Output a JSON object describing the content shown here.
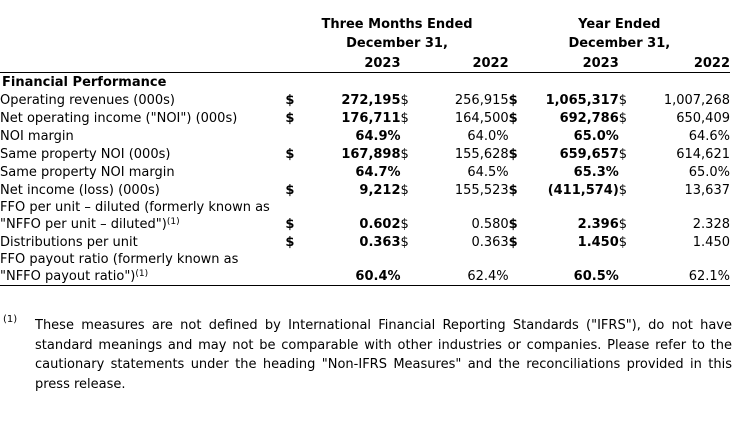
{
  "table": {
    "group1": {
      "line1": "Three Months Ended",
      "line2": "December 31,"
    },
    "group2": {
      "line1": "Year Ended",
      "line2": "December 31,"
    },
    "years": [
      "2023",
      "2022",
      "2023",
      "2022"
    ],
    "section_title": "Financial Performance",
    "rows": [
      {
        "label_lines": [
          "Operating revenues (000s)"
        ],
        "sup": "",
        "cells": [
          {
            "cur": "$",
            "value": "272,195",
            "align": "num"
          },
          {
            "cur": "$",
            "value": "256,915",
            "align": "num"
          },
          {
            "cur": "$",
            "value": "1,065,317",
            "align": "num"
          },
          {
            "cur": "$",
            "value": "1,007,268",
            "align": "num"
          }
        ]
      },
      {
        "label_lines": [
          "Net operating income (\"NOI\") (000s)"
        ],
        "sup": "",
        "cells": [
          {
            "cur": "$",
            "value": "176,711",
            "align": "num"
          },
          {
            "cur": "$",
            "value": "164,500",
            "align": "num"
          },
          {
            "cur": "$",
            "value": "692,786",
            "align": "num"
          },
          {
            "cur": "$",
            "value": "650,409",
            "align": "num"
          }
        ]
      },
      {
        "label_lines": [
          "NOI margin"
        ],
        "sup": "",
        "cells": [
          {
            "cur": "",
            "value": "64.9%",
            "align": "pct"
          },
          {
            "cur": "",
            "value": "64.0%",
            "align": "pct"
          },
          {
            "cur": "",
            "value": "65.0%",
            "align": "pct"
          },
          {
            "cur": "",
            "value": "64.6%",
            "align": "pct"
          }
        ]
      },
      {
        "label_lines": [
          "Same property NOI (000s)"
        ],
        "sup": "",
        "cells": [
          {
            "cur": "$",
            "value": "167,898",
            "align": "num"
          },
          {
            "cur": "$",
            "value": "155,628",
            "align": "num"
          },
          {
            "cur": "$",
            "value": "659,657",
            "align": "num"
          },
          {
            "cur": "$",
            "value": "614,621",
            "align": "num"
          }
        ]
      },
      {
        "label_lines": [
          "Same property NOI margin"
        ],
        "sup": "",
        "cells": [
          {
            "cur": "",
            "value": "64.7%",
            "align": "pct"
          },
          {
            "cur": "",
            "value": "64.5%",
            "align": "pct"
          },
          {
            "cur": "",
            "value": "65.3%",
            "align": "pct"
          },
          {
            "cur": "",
            "value": "65.0%",
            "align": "pct"
          }
        ]
      },
      {
        "label_lines": [
          "Net income (loss) (000s)"
        ],
        "sup": "",
        "cells": [
          {
            "cur": "$",
            "value": "9,212",
            "align": "num"
          },
          {
            "cur": "$",
            "value": "155,523",
            "align": "num"
          },
          {
            "cur": "$",
            "value": "(411,574)",
            "align": "paren"
          },
          {
            "cur": "$",
            "value": "13,637",
            "align": "num"
          }
        ]
      },
      {
        "label_lines": [
          "FFO per unit – diluted (formerly known as",
          "\"NFFO per unit – diluted\")"
        ],
        "sup": "(1)",
        "cells": [
          {
            "cur": "$",
            "value": "0.602",
            "align": "num"
          },
          {
            "cur": "$",
            "value": "0.580",
            "align": "num"
          },
          {
            "cur": "$",
            "value": "2.396",
            "align": "num"
          },
          {
            "cur": "$",
            "value": "2.328",
            "align": "num"
          }
        ]
      },
      {
        "label_lines": [
          "Distributions per unit"
        ],
        "sup": "",
        "cells": [
          {
            "cur": "$",
            "value": "0.363",
            "align": "num"
          },
          {
            "cur": "$",
            "value": "0.363",
            "align": "num"
          },
          {
            "cur": "$",
            "value": "1.450",
            "align": "num"
          },
          {
            "cur": "$",
            "value": "1.450",
            "align": "num"
          }
        ]
      },
      {
        "label_lines": [
          "FFO payout ratio (formerly known as",
          "\"NFFO payout ratio\")"
        ],
        "sup": "(1)",
        "cells": [
          {
            "cur": "",
            "value": "60.4%",
            "align": "pct"
          },
          {
            "cur": "",
            "value": "62.4%",
            "align": "pct"
          },
          {
            "cur": "",
            "value": "60.5%",
            "align": "pct"
          },
          {
            "cur": "",
            "value": "62.1%",
            "align": "pct"
          }
        ]
      }
    ]
  },
  "footnote": {
    "marker": "(1)",
    "text": "These measures are not defined by International Financial Reporting Standards (\"IFRS\"), do not have standard meanings and may not be comparable with other industries or companies. Please refer to the cautionary statements under the heading \"Non-IFRS Measures\" and the reconciliations provided in this press release."
  },
  "colors": {
    "text": "#000000",
    "background": "#ffffff",
    "rule": "#000000"
  }
}
